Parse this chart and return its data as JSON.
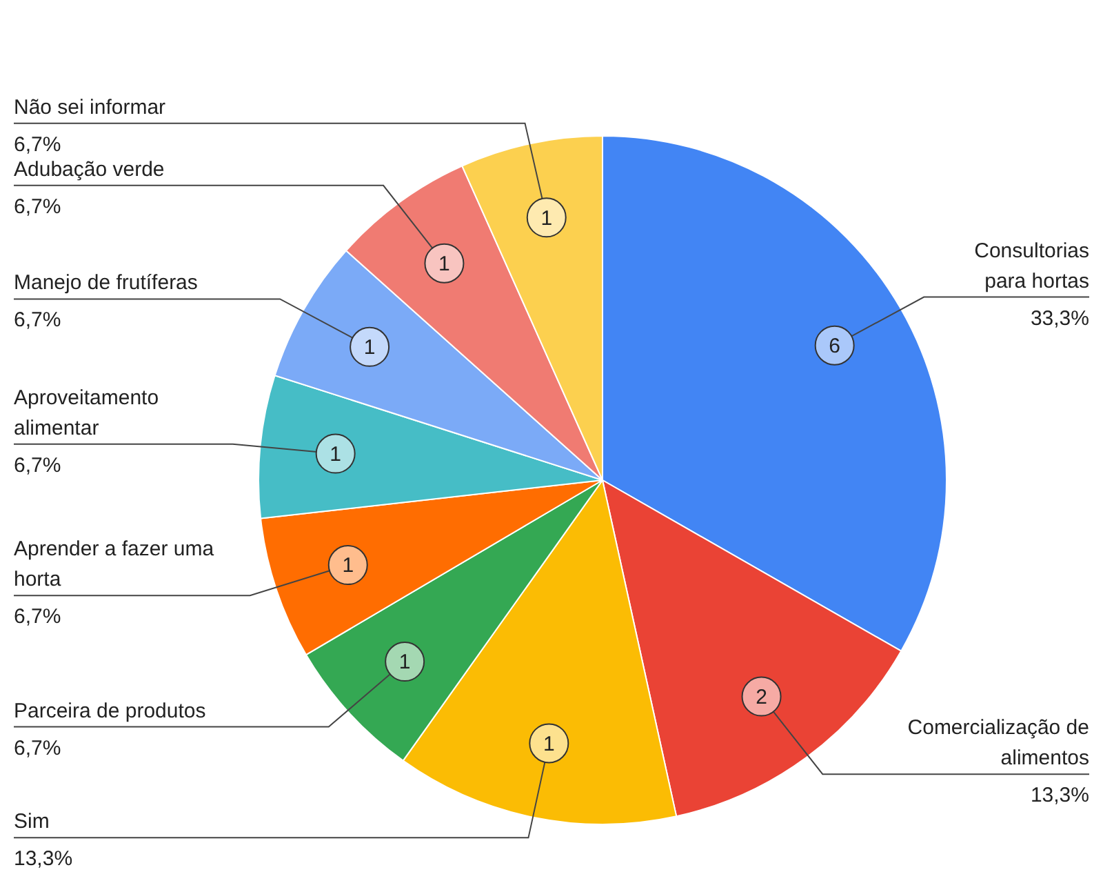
{
  "chart_data": {
    "type": "pie",
    "categories": [
      "Consultorias para hortas",
      "Comercialização de alimentos",
      "Sim",
      "Parceira de produtos",
      "Aprender a fazer uma horta",
      "Aproveitamento alimentar",
      "Manejo de frutíferas",
      "Adubação verde",
      "Não sei informar"
    ],
    "values": [
      33.3,
      13.3,
      13.3,
      6.7,
      6.7,
      6.7,
      6.7,
      6.7,
      6.7
    ],
    "colors": [
      "#4285f4",
      "#ea4335",
      "#fbbc04",
      "#34a853",
      "#ff6d01",
      "#46bdc6",
      "#7baaf7",
      "#f07b72",
      "#fcd04f"
    ],
    "value_labels": [
      "33,3%",
      "13,3%",
      "13,3%",
      "6,7%",
      "6,7%",
      "6,7%",
      "6,7%",
      "6,7%",
      "6,7%"
    ],
    "annotations": [
      {
        "text": "6",
        "x": "Consultorias para hortas"
      },
      {
        "text": "2",
        "x": "Comercialização de alimentos"
      },
      {
        "text": "1",
        "x": "Sim"
      },
      {
        "text": "1",
        "x": "Parceira de produtos"
      },
      {
        "text": "1",
        "x": "Aprender a fazer uma horta"
      },
      {
        "text": "1",
        "x": "Aproveitamento alimentar"
      },
      {
        "text": "1",
        "x": "Manejo de frutíferas"
      },
      {
        "text": "1",
        "x": "Adubação verde"
      },
      {
        "text": "1",
        "x": "Não sei informar"
      }
    ],
    "legend": false
  }
}
